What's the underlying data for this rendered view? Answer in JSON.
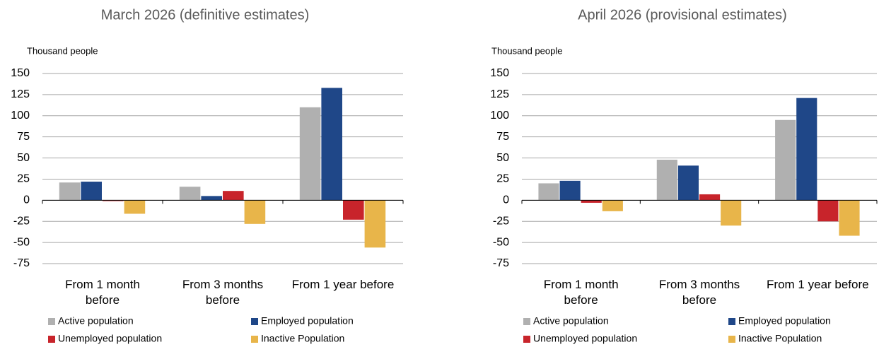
{
  "chart_data": [
    {
      "type": "bar",
      "title": "March 2026 (definitive estimates)",
      "y_label": "Thousand people",
      "categories": [
        "From 1 month before",
        "From 3 months before",
        "From 1 year before"
      ],
      "series": [
        {
          "name": "Active population",
          "color": "#b0b0b0",
          "values": [
            21,
            16,
            110
          ]
        },
        {
          "name": "Employed population",
          "color": "#1f4788",
          "values": [
            22,
            5,
            133
          ]
        },
        {
          "name": "Unemployed population",
          "color": "#c8242b",
          "values": [
            -1,
            11,
            -23
          ]
        },
        {
          "name": "Inactive Population",
          "color": "#e8b54a",
          "values": [
            -16,
            -28,
            -56
          ]
        }
      ],
      "ylim": [
        -75,
        150
      ],
      "yticks": [
        -75,
        -50,
        -25,
        0,
        25,
        50,
        75,
        100,
        125,
        150
      ],
      "grid": true,
      "legend": "bottom"
    },
    {
      "type": "bar",
      "title": "April 2026 (provisional estimates)",
      "y_label": "Thousand people",
      "categories": [
        "From 1 month before",
        "From 3 months before",
        "From 1 year before"
      ],
      "series": [
        {
          "name": "Active population",
          "color": "#b0b0b0",
          "values": [
            20,
            48,
            95
          ]
        },
        {
          "name": "Employed population",
          "color": "#1f4788",
          "values": [
            23,
            41,
            121
          ]
        },
        {
          "name": "Unemployed population",
          "color": "#c8242b",
          "values": [
            -3,
            7,
            -25
          ]
        },
        {
          "name": "Inactive Population",
          "color": "#e8b54a",
          "values": [
            -13,
            -30,
            -42
          ]
        }
      ],
      "ylim": [
        -75,
        150
      ],
      "yticks": [
        -75,
        -50,
        -25,
        0,
        25,
        50,
        75,
        100,
        125,
        150
      ],
      "grid": true,
      "legend": "bottom"
    }
  ]
}
